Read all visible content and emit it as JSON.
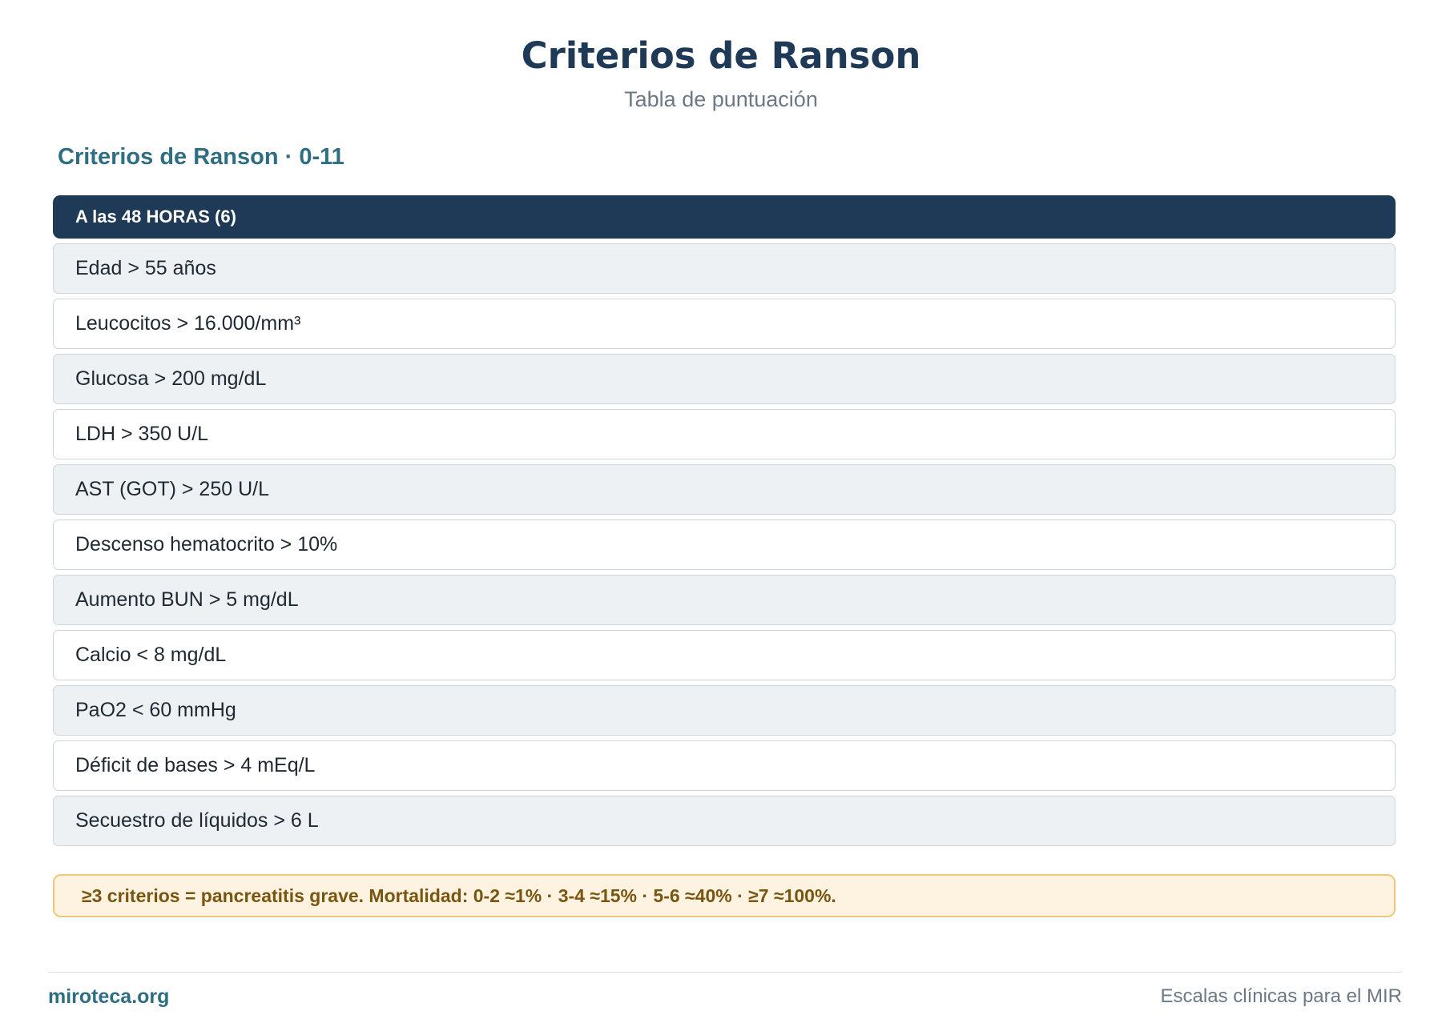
{
  "title": "Criterios de Ranson",
  "subtitle": "Tabla de puntuación",
  "section_heading": "Criterios de Ranson · 0-11",
  "table": {
    "header": "A las 48 HORAS (6)",
    "rows": [
      "Edad > 55 años",
      "Leucocitos > 16.000/mm³",
      "Glucosa > 200 mg/dL",
      "LDH > 350 U/L",
      "AST (GOT) > 250 U/L",
      "Descenso hematocrito > 10%",
      "Aumento BUN > 5 mg/dL",
      "Calcio < 8 mg/dL",
      "PaO2 < 60 mmHg",
      "Déficit de bases > 4 mEq/L",
      "Secuestro de líquidos > 6 L"
    ]
  },
  "note": "≥3 criterios = pancreatitis grave. Mortalidad: 0-2 ≈1% · 3-4 ≈15% · 5-6 ≈40% · ≥7 ≈100%.",
  "footer": {
    "brand": "miroteca.org",
    "tagline": "Escalas clínicas para el MIR"
  },
  "colors": {
    "header_bg": "#1f3a56",
    "accent": "#2f6e82",
    "row_alt_bg": "#edf1f4",
    "note_bg": "#fdf3e0",
    "note_border": "#ebc97a",
    "note_text": "#7a5510"
  }
}
